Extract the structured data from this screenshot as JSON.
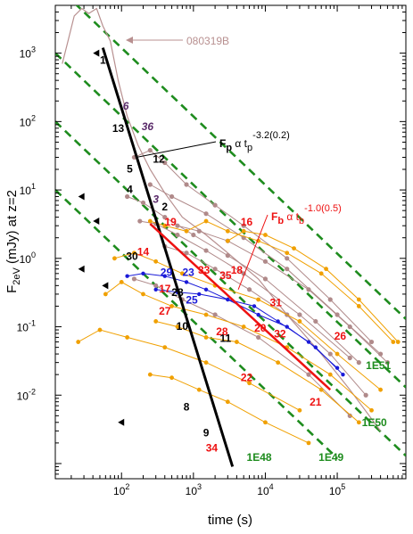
{
  "chart_data": {
    "type": "scatter",
    "title": "",
    "xlabel": "time (s)",
    "ylabel": "F2eV (mJy) at z=2",
    "xscale": "log",
    "yscale": "log",
    "xlim": [
      12,
      900000
    ],
    "ylim": [
      0.0006,
      5000
    ],
    "x_ticks": [
      {
        "value": 100,
        "base": "10",
        "exp": "2"
      },
      {
        "value": 1000,
        "base": "10",
        "exp": "3"
      },
      {
        "value": 10000,
        "base": "10",
        "exp": "4"
      },
      {
        "value": 100000,
        "base": "10",
        "exp": "5"
      }
    ],
    "y_ticks": [
      {
        "value": 0.01,
        "base": "10",
        "exp": "-2"
      },
      {
        "value": 0.1,
        "base": "10",
        "exp": "-1"
      },
      {
        "value": 1,
        "base": "10",
        "exp": "0"
      },
      {
        "value": 10,
        "base": "10",
        "exp": "1"
      },
      {
        "value": 100,
        "base": "10",
        "exp": "2"
      },
      {
        "value": 1000,
        "base": "10",
        "exp": "3"
      }
    ],
    "colors": {
      "peak_fit": "#000000",
      "break_fit": "#ee1111",
      "energy_lines": "#1e8c1e",
      "grb_080319B": "#b89090",
      "brown_curves": "#b08a8a",
      "orange_curves": "#f0a000",
      "blue_curves": "#1a1ad8",
      "upper_limits": "#000000"
    },
    "peak_fit": {
      "label_main": "F",
      "label_sub": "p",
      "label_mid": " α t",
      "label_sub2": "p",
      "label_exp": "-3.2(0.2)",
      "points": [
        {
          "x": 55,
          "y": 1200
        },
        {
          "x": 3500,
          "y": 0.0009
        }
      ]
    },
    "break_fit": {
      "label_main": "F",
      "label_sub": "b",
      "label_mid": " α t",
      "label_sub2": "b",
      "label_exp": "-1.0(0.5)",
      "points": [
        {
          "x": 250,
          "y": 3.2
        },
        {
          "x": 80000,
          "y": 0.012
        }
      ]
    },
    "energy_lines": [
      {
        "name": "1E51",
        "points": [
          {
            "x": 12,
            "y": 10000
          },
          {
            "x": 900000,
            "y": 0.13
          }
        ]
      },
      {
        "name": "1E50",
        "points": [
          {
            "x": 12,
            "y": 1000
          },
          {
            "x": 900000,
            "y": 0.013
          }
        ]
      },
      {
        "name": "1E49",
        "points": [
          {
            "x": 12,
            "y": 100
          },
          {
            "x": 900000,
            "y": 0.0013
          }
        ]
      },
      {
        "name": "1E48",
        "points": [
          {
            "x": 12,
            "y": 10
          },
          {
            "x": 100000,
            "y": 0.0012
          }
        ]
      }
    ],
    "energy_labels": [
      {
        "text": "1E51",
        "x": 250000,
        "y": 0.024
      },
      {
        "text": "1E50",
        "x": 220000,
        "y": 0.0035
      },
      {
        "text": "1E49",
        "x": 55000,
        "y": 0.0011
      },
      {
        "text": "1E48",
        "x": 5500,
        "y": 0.0011
      }
    ],
    "grb_080319B": {
      "label": "080319B",
      "points": [
        {
          "x": 15,
          "y": 700
        },
        {
          "x": 18,
          "y": 1500
        },
        {
          "x": 22,
          "y": 3500
        },
        {
          "x": 28,
          "y": 4500
        },
        {
          "x": 35,
          "y": 3800
        },
        {
          "x": 45,
          "y": 4500
        },
        {
          "x": 55,
          "y": 2500
        },
        {
          "x": 70,
          "y": 1500
        },
        {
          "x": 90,
          "y": 400
        },
        {
          "x": 120,
          "y": 120
        },
        {
          "x": 170,
          "y": 45
        },
        {
          "x": 250,
          "y": 20
        },
        {
          "x": 400,
          "y": 9
        },
        {
          "x": 700,
          "y": 4
        },
        {
          "x": 1500,
          "y": 2.2
        },
        {
          "x": 3000,
          "y": 1.2
        },
        {
          "x": 8000,
          "y": 0.5
        },
        {
          "x": 20000,
          "y": 0.15
        },
        {
          "x": 60000,
          "y": 0.04
        },
        {
          "x": 150000,
          "y": 0.012
        },
        {
          "x": 400000,
          "y": 0.003
        }
      ]
    },
    "brown_curves": [
      [
        {
          "x": 150,
          "y": 30
        },
        {
          "x": 250,
          "y": 38
        },
        {
          "x": 400,
          "y": 25
        },
        {
          "x": 800,
          "y": 12
        },
        {
          "x": 2000,
          "y": 6
        },
        {
          "x": 5000,
          "y": 3
        },
        {
          "x": 20000,
          "y": 1.0
        },
        {
          "x": 80000,
          "y": 0.25
        },
        {
          "x": 300000,
          "y": 0.06
        }
      ],
      [
        {
          "x": 120,
          "y": 8
        },
        {
          "x": 200,
          "y": 6.5
        },
        {
          "x": 400,
          "y": 4
        },
        {
          "x": 1000,
          "y": 2.2
        },
        {
          "x": 3000,
          "y": 1.1
        },
        {
          "x": 10000,
          "y": 0.5
        },
        {
          "x": 50000,
          "y": 0.12
        },
        {
          "x": 200000,
          "y": 0.03
        }
      ],
      [
        {
          "x": 180,
          "y": 3.5
        },
        {
          "x": 300,
          "y": 3.2
        },
        {
          "x": 600,
          "y": 2.2
        },
        {
          "x": 1500,
          "y": 1.3
        },
        {
          "x": 5000,
          "y": 0.6
        },
        {
          "x": 30000,
          "y": 0.15
        },
        {
          "x": 150000,
          "y": 0.035
        }
      ],
      [
        {
          "x": 250,
          "y": 12
        },
        {
          "x": 500,
          "y": 8
        },
        {
          "x": 1500,
          "y": 4.5
        },
        {
          "x": 5000,
          "y": 2.0
        },
        {
          "x": 20000,
          "y": 0.7
        },
        {
          "x": 100000,
          "y": 0.15
        },
        {
          "x": 400000,
          "y": 0.04
        }
      ],
      [
        {
          "x": 400,
          "y": 1.5
        },
        {
          "x": 800,
          "y": 1.2
        },
        {
          "x": 2000,
          "y": 0.7
        },
        {
          "x": 6000,
          "y": 0.35
        },
        {
          "x": 20000,
          "y": 0.15
        },
        {
          "x": 80000,
          "y": 0.04
        },
        {
          "x": 250000,
          "y": 0.01
        }
      ],
      [
        {
          "x": 150,
          "y": 0.5
        },
        {
          "x": 300,
          "y": 0.4
        },
        {
          "x": 700,
          "y": 0.25
        },
        {
          "x": 2000,
          "y": 0.15
        },
        {
          "x": 8000,
          "y": 0.07
        },
        {
          "x": 40000,
          "y": 0.02
        },
        {
          "x": 150000,
          "y": 0.005
        }
      ],
      [
        {
          "x": 600,
          "y": 3
        },
        {
          "x": 1200,
          "y": 2.5
        },
        {
          "x": 3000,
          "y": 1.8
        },
        {
          "x": 10000,
          "y": 0.9
        },
        {
          "x": 40000,
          "y": 0.35
        },
        {
          "x": 150000,
          "y": 0.1
        },
        {
          "x": 500000,
          "y": 0.03
        }
      ]
    ],
    "orange_curves": [
      [
        {
          "x": 250,
          "y": 3.5
        },
        {
          "x": 400,
          "y": 3
        },
        {
          "x": 800,
          "y": 2.5
        },
        {
          "x": 1500,
          "y": 3.5
        },
        {
          "x": 3000,
          "y": 2.5
        },
        {
          "x": 8000,
          "y": 1.8
        },
        {
          "x": 20000,
          "y": 1.2
        },
        {
          "x": 60000,
          "y": 0.6
        },
        {
          "x": 200000,
          "y": 0.2
        },
        {
          "x": 600000,
          "y": 0.06
        }
      ],
      [
        {
          "x": 80,
          "y": 1.0
        },
        {
          "x": 150,
          "y": 1.2
        },
        {
          "x": 300,
          "y": 0.9
        },
        {
          "x": 700,
          "y": 0.6
        },
        {
          "x": 2000,
          "y": 0.4
        },
        {
          "x": 8000,
          "y": 0.25
        },
        {
          "x": 30000,
          "y": 0.12
        },
        {
          "x": 100000,
          "y": 0.04
        },
        {
          "x": 400000,
          "y": 0.012
        }
      ],
      [
        {
          "x": 60,
          "y": 0.3
        },
        {
          "x": 100,
          "y": 0.45
        },
        {
          "x": 200,
          "y": 0.3
        },
        {
          "x": 500,
          "y": 0.2
        },
        {
          "x": 1500,
          "y": 0.15
        },
        {
          "x": 5000,
          "y": 0.1
        },
        {
          "x": 20000,
          "y": 0.05
        },
        {
          "x": 80000,
          "y": 0.02
        },
        {
          "x": 300000,
          "y": 0.006
        }
      ],
      [
        {
          "x": 300,
          "y": 0.12
        },
        {
          "x": 600,
          "y": 0.1
        },
        {
          "x": 1500,
          "y": 0.07
        },
        {
          "x": 4000,
          "y": 0.06
        },
        {
          "x": 15000,
          "y": 0.03
        },
        {
          "x": 60000,
          "y": 0.012
        },
        {
          "x": 200000,
          "y": 0.004
        }
      ],
      [
        {
          "x": 25,
          "y": 0.06
        },
        {
          "x": 50,
          "y": 0.09
        },
        {
          "x": 120,
          "y": 0.07
        },
        {
          "x": 400,
          "y": 0.05
        },
        {
          "x": 1500,
          "y": 0.03
        },
        {
          "x": 6000,
          "y": 0.015
        },
        {
          "x": 30000,
          "y": 0.006
        }
      ],
      [
        {
          "x": 250,
          "y": 0.02
        },
        {
          "x": 500,
          "y": 0.018
        },
        {
          "x": 1200,
          "y": 0.012
        },
        {
          "x": 3000,
          "y": 0.008
        },
        {
          "x": 10000,
          "y": 0.004
        },
        {
          "x": 40000,
          "y": 0.002
        }
      ],
      [
        {
          "x": 3000,
          "y": 1.8
        },
        {
          "x": 5000,
          "y": 2.5
        },
        {
          "x": 10000,
          "y": 2.2
        },
        {
          "x": 25000,
          "y": 1.4
        },
        {
          "x": 70000,
          "y": 0.7
        },
        {
          "x": 200000,
          "y": 0.25
        },
        {
          "x": 700000,
          "y": 0.06
        }
      ]
    ],
    "blue_curves": [
      [
        {
          "x": 120,
          "y": 0.55
        },
        {
          "x": 200,
          "y": 0.6
        },
        {
          "x": 400,
          "y": 0.55
        },
        {
          "x": 800,
          "y": 0.45
        },
        {
          "x": 1500,
          "y": 0.35
        },
        {
          "x": 3000,
          "y": 0.25
        },
        {
          "x": 8000,
          "y": 0.15
        },
        {
          "x": 20000,
          "y": 0.1
        },
        {
          "x": 50000,
          "y": 0.05
        },
        {
          "x": 120000,
          "y": 0.02
        }
      ],
      [
        {
          "x": 300,
          "y": 0.35
        },
        {
          "x": 600,
          "y": 0.32
        },
        {
          "x": 1200,
          "y": 0.3
        },
        {
          "x": 3000,
          "y": 0.25
        },
        {
          "x": 7000,
          "y": 0.2
        },
        {
          "x": 15000,
          "y": 0.12
        },
        {
          "x": 40000,
          "y": 0.06
        },
        {
          "x": 100000,
          "y": 0.025
        }
      ]
    ],
    "upper_limits": [
      {
        "x": 45,
        "y": 1000
      },
      {
        "x": 28,
        "y": 8
      },
      {
        "x": 45,
        "y": 3.5
      },
      {
        "x": 28,
        "y": 0.7
      },
      {
        "x": 60,
        "y": 0.4
      },
      {
        "x": 100,
        "y": 0.004
      }
    ],
    "labels": [
      {
        "text": "1",
        "x": 55,
        "y": 700,
        "color": "black",
        "style": "normal"
      },
      {
        "text": "6",
        "x": 115,
        "y": 150,
        "color": "purple",
        "style": "italic"
      },
      {
        "text": "36",
        "x": 230,
        "y": 75,
        "color": "purple",
        "style": "italic"
      },
      {
        "text": "13",
        "x": 90,
        "y": 70,
        "color": "black",
        "style": "normal"
      },
      {
        "text": "12",
        "x": 330,
        "y": 25,
        "color": "black",
        "style": "normal"
      },
      {
        "text": "5",
        "x": 130,
        "y": 18,
        "color": "black",
        "style": "normal"
      },
      {
        "text": "4",
        "x": 130,
        "y": 9,
        "color": "black",
        "style": "normal"
      },
      {
        "text": "3",
        "x": 300,
        "y": 6.5,
        "color": "purple",
        "style": "italic"
      },
      {
        "text": "2",
        "x": 400,
        "y": 5,
        "color": "black",
        "style": "normal"
      },
      {
        "text": "19",
        "x": 480,
        "y": 3.0,
        "color": "red",
        "style": "normal"
      },
      {
        "text": "16",
        "x": 5500,
        "y": 3.0,
        "color": "red",
        "style": "normal"
      },
      {
        "text": "14",
        "x": 200,
        "y": 1.1,
        "color": "red",
        "style": "normal"
      },
      {
        "text": "30",
        "x": 140,
        "y": 0.95,
        "color": "black",
        "style": "normal"
      },
      {
        "text": "29",
        "x": 420,
        "y": 0.55,
        "color": "blue",
        "style": "normal"
      },
      {
        "text": "23",
        "x": 850,
        "y": 0.55,
        "color": "blue",
        "style": "normal"
      },
      {
        "text": "33",
        "x": 1400,
        "y": 0.6,
        "color": "red",
        "style": "normal"
      },
      {
        "text": "35",
        "x": 2800,
        "y": 0.5,
        "color": "red",
        "style": "normal"
      },
      {
        "text": "18",
        "x": 4000,
        "y": 0.6,
        "color": "red",
        "style": "normal"
      },
      {
        "text": "17",
        "x": 400,
        "y": 0.32,
        "color": "red",
        "style": "normal"
      },
      {
        "text": "28",
        "x": 600,
        "y": 0.28,
        "color": "black",
        "style": "normal"
      },
      {
        "text": "25",
        "x": 950,
        "y": 0.22,
        "color": "blue",
        "style": "normal"
      },
      {
        "text": "27",
        "x": 400,
        "y": 0.15,
        "color": "red",
        "style": "normal"
      },
      {
        "text": "10",
        "x": 700,
        "y": 0.09,
        "color": "black",
        "style": "normal"
      },
      {
        "text": "31",
        "x": 14000,
        "y": 0.2,
        "color": "red",
        "style": "normal"
      },
      {
        "text": "11",
        "x": 2800,
        "y": 0.06,
        "color": "black",
        "style": "normal"
      },
      {
        "text": "20",
        "x": 8500,
        "y": 0.085,
        "color": "red",
        "style": "normal"
      },
      {
        "text": "28",
        "x": 2500,
        "y": 0.075,
        "color": "red",
        "style": "normal"
      },
      {
        "text": "32",
        "x": 16000,
        "y": 0.07,
        "color": "red",
        "style": "normal"
      },
      {
        "text": "26",
        "x": 110000,
        "y": 0.065,
        "color": "red",
        "style": "normal"
      },
      {
        "text": "22",
        "x": 5500,
        "y": 0.016,
        "color": "red",
        "style": "normal"
      },
      {
        "text": "21",
        "x": 50000,
        "y": 0.007,
        "color": "red",
        "style": "normal"
      },
      {
        "text": "8",
        "x": 800,
        "y": 0.006,
        "color": "black",
        "style": "normal"
      },
      {
        "text": "9",
        "x": 1500,
        "y": 0.0025,
        "color": "black",
        "style": "normal"
      },
      {
        "text": "34",
        "x": 1800,
        "y": 0.0015,
        "color": "red",
        "style": "normal"
      }
    ]
  }
}
